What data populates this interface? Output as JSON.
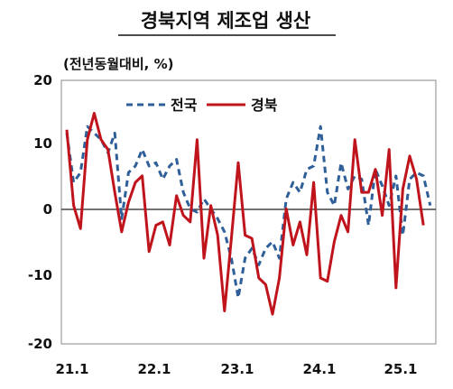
{
  "chart_data": {
    "type": "line",
    "title": "경북지역 제조업 생산",
    "unit_label": "(전년동월대비, %)",
    "ylim": [
      -20,
      20
    ],
    "y_ticks": [
      "20",
      "10",
      "0",
      "-10",
      "-20"
    ],
    "x_tick_labels": [
      "21.1",
      "22.1",
      "23.1",
      "24.1",
      "25.1"
    ],
    "legend_position": "top-left",
    "grid": false,
    "series": [
      {
        "name": "전국",
        "style": "dashed",
        "color": "#2f5f98",
        "values": [
          12.0,
          4.5,
          6.0,
          13.0,
          12.0,
          11.0,
          9.0,
          12.0,
          -1.0,
          6.0,
          7.0,
          9.5,
          7.0,
          7.5,
          5.0,
          7.0,
          8.0,
          3.0,
          0.5,
          0.0,
          2.0,
          0.5,
          -1.0,
          -3.0,
          -7.0,
          -13.0,
          -7.0,
          -5.5,
          -8.0,
          -5.5,
          -4.5,
          -7.0,
          2.0,
          4.5,
          3.0,
          6.5,
          7.0,
          13.0,
          3.0,
          1.0,
          7.5,
          3.5,
          5.5,
          5.0,
          -2.0,
          6.5,
          4.0,
          1.0,
          5.5,
          -3.5,
          5.0,
          6.0,
          5.5,
          1.0
        ]
      },
      {
        "name": "경북",
        "style": "solid",
        "color": "#c0141d",
        "values": [
          12.5,
          1.0,
          -2.5,
          11.0,
          15.0,
          11.0,
          9.5,
          3.0,
          -3.0,
          1.5,
          4.5,
          5.5,
          -6.0,
          -2.0,
          -1.5,
          -5.0,
          2.5,
          -0.5,
          -1.5,
          11.0,
          -7.0,
          1.0,
          -3.5,
          -15.0,
          -4.0,
          7.5,
          -3.5,
          -4.0,
          -10.0,
          -11.0,
          -15.5,
          -10.0,
          0.5,
          -5.0,
          -1.5,
          -6.5,
          4.5,
          -10.0,
          -10.5,
          -4.5,
          -0.5,
          -3.0,
          11.0,
          3.0,
          3.0,
          6.5,
          -0.5,
          9.5,
          -11.5,
          3.5,
          8.5,
          5.0,
          -2.0
        ]
      }
    ]
  }
}
